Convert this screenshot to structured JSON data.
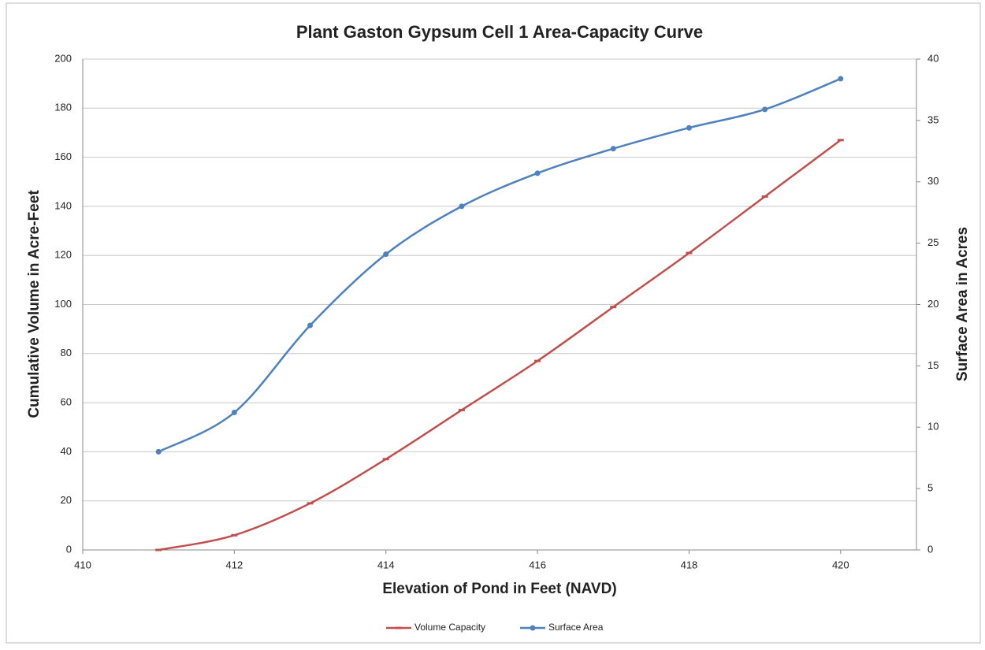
{
  "chart_data": {
    "type": "line",
    "title": "Plant Gaston Gypsum Cell 1 Area-Capacity Curve",
    "x_label": "Elevation of Pond in Feet (NAVD)",
    "y_label": "Cumulative Volume in Acre-Feet",
    "y2_label": "Surface Area in Acres",
    "x": [
      411,
      412,
      413,
      414,
      415,
      416,
      417,
      418,
      419,
      420
    ],
    "series": [
      {
        "name": "Volume Capacity",
        "color": "#c0504d",
        "values": [
          0,
          6,
          19,
          37,
          57,
          77,
          99,
          121,
          144,
          167
        ]
      },
      {
        "name": "Surface Area",
        "color": "#4f81bd",
        "axis": "y2",
        "values": [
          8.0,
          11.2,
          18.3,
          24.1,
          28.0,
          30.7,
          32.7,
          34.4,
          35.9,
          38.4
        ]
      }
    ],
    "xlim": [
      410,
      421
    ],
    "xticks": [
      410,
      412,
      414,
      416,
      418,
      420
    ],
    "ylim": [
      0,
      200
    ],
    "yticks": [
      0,
      20,
      40,
      60,
      80,
      100,
      120,
      140,
      160,
      180,
      200
    ],
    "y2lim": [
      0,
      40
    ],
    "y2ticks": [
      0,
      5,
      10,
      15,
      20,
      25,
      30,
      35,
      40
    ],
    "grid": true,
    "legend": "bottom",
    "smooth": true
  }
}
